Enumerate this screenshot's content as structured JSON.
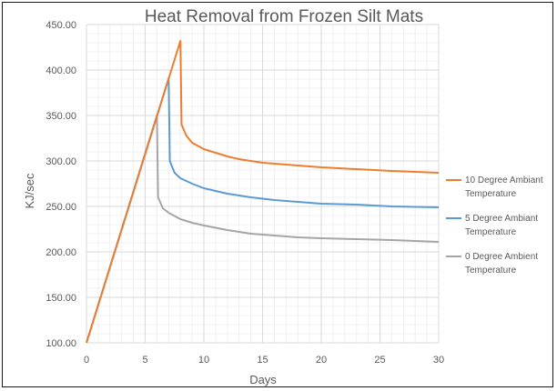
{
  "chart_data": {
    "type": "line",
    "title": "Heat Removal from Frozen Silt Mats",
    "xlabel": "Days",
    "ylabel": "KJ/sec",
    "xlim": [
      0,
      30
    ],
    "ylim": [
      100,
      450
    ],
    "x_ticks": [
      "0",
      "5",
      "10",
      "15",
      "20",
      "25",
      "30"
    ],
    "y_ticks": [
      "100.00",
      "150.00",
      "200.00",
      "250.00",
      "300.00",
      "350.00",
      "400.00",
      "450.00"
    ],
    "grid": true,
    "legend_position": "right",
    "series": [
      {
        "name": [
          "10 Degree Ambiant",
          "Temperature"
        ],
        "color": "#ED7D31",
        "points": [
          [
            0,
            100
          ],
          [
            8,
            432
          ],
          [
            8.1,
            340
          ],
          [
            8.5,
            328
          ],
          [
            9,
            320
          ],
          [
            10,
            313
          ],
          [
            11,
            309
          ],
          [
            12,
            305
          ],
          [
            13,
            302
          ],
          [
            15,
            298
          ],
          [
            17,
            296
          ],
          [
            20,
            293
          ],
          [
            23,
            291
          ],
          [
            26,
            289
          ],
          [
            30,
            287
          ]
        ]
      },
      {
        "name": [
          "5 Degree Ambiant",
          "Temperature"
        ],
        "color": "#5B9BD5",
        "points": [
          [
            0,
            100
          ],
          [
            7,
            391
          ],
          [
            7.1,
            300
          ],
          [
            7.5,
            287
          ],
          [
            8,
            281
          ],
          [
            9,
            275
          ],
          [
            10,
            270
          ],
          [
            12,
            264
          ],
          [
            14,
            260
          ],
          [
            16,
            257
          ],
          [
            18,
            255
          ],
          [
            20,
            253
          ],
          [
            23,
            252
          ],
          [
            26,
            250
          ],
          [
            30,
            249
          ]
        ]
      },
      {
        "name": [
          "0 Degree Ambient",
          "Temperature"
        ],
        "color": "#A5A5A5",
        "points": [
          [
            0,
            100
          ],
          [
            6,
            350
          ],
          [
            6.1,
            260
          ],
          [
            6.5,
            248
          ],
          [
            7,
            243
          ],
          [
            8,
            236
          ],
          [
            9,
            232
          ],
          [
            10,
            229
          ],
          [
            12,
            224
          ],
          [
            14,
            220
          ],
          [
            16,
            218
          ],
          [
            18,
            216
          ],
          [
            20,
            215
          ],
          [
            23,
            214
          ],
          [
            26,
            213
          ],
          [
            30,
            211
          ]
        ]
      }
    ]
  }
}
